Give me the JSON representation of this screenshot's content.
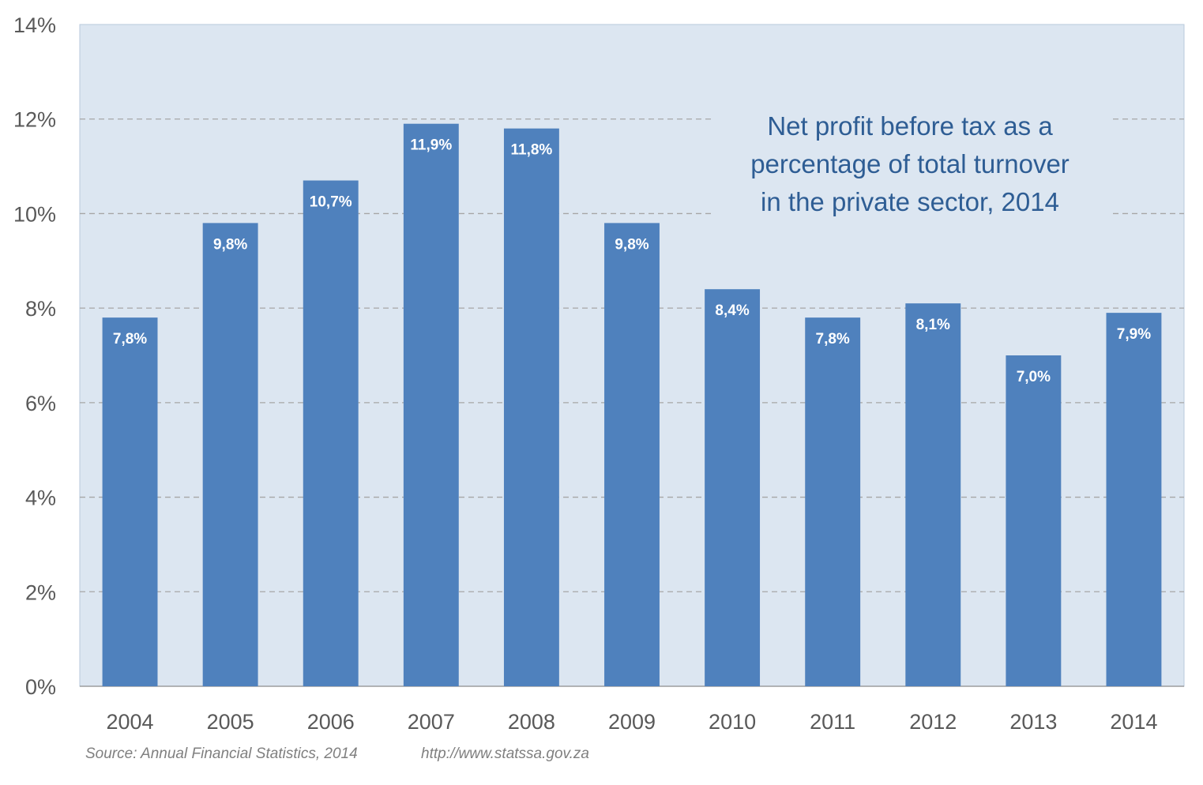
{
  "chart_data": {
    "type": "bar",
    "title_lines": [
      "Net profit before tax as a",
      "percentage of total turnover",
      "in the private sector, 2014"
    ],
    "categories": [
      "2004",
      "2005",
      "2006",
      "2007",
      "2008",
      "2009",
      "2010",
      "2011",
      "2012",
      "2013",
      "2014"
    ],
    "values": [
      7.8,
      9.8,
      10.7,
      11.9,
      11.8,
      9.8,
      8.4,
      7.8,
      8.1,
      7.0,
      7.9
    ],
    "data_labels": [
      "7,8%",
      "9,8%",
      "10,7%",
      "11,9%",
      "11,8%",
      "9,8%",
      "8,4%",
      "7,8%",
      "8,1%",
      "7,0%",
      "7,9%"
    ],
    "y_ticks": [
      0,
      2,
      4,
      6,
      8,
      10,
      12,
      14
    ],
    "y_tick_labels": [
      "0%",
      "2%",
      "4%",
      "6%",
      "8%",
      "10%",
      "12%",
      "14%"
    ],
    "ylim": [
      0,
      14
    ],
    "grid": true,
    "colors": {
      "bar": "#4f81bd",
      "plot_background": "#dce6f1",
      "gridline": "#a6a6a6",
      "title": "#2e5d94"
    }
  },
  "footer": {
    "source": "Source: Annual Financial Statistics, 2014",
    "url": "http://www.statssa.gov.za"
  }
}
